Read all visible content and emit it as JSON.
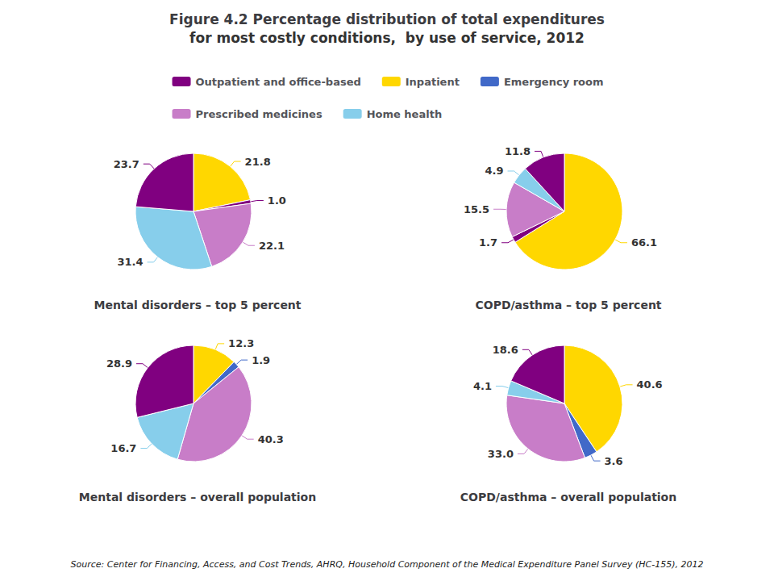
{
  "title": "Figure 4.2 Percentage distribution of total expenditures",
  "subtitle": "for most costly conditions,  by use of service, 2012",
  "annotations": [
    "Source: Center for Financing, Access, and Cost Trends, AHRQ, Household Component of the Medical Expenditure Panel Survey (HC-155), 2012"
  ],
  "legend": "top",
  "categories": [
    "Outpatient and office-based",
    "Inpatient",
    "Emergency room",
    "Prescribed medicines",
    "Home health"
  ],
  "chart_data": [
    {
      "type": "pie",
      "title": "Mental disorders – top 5 percent",
      "categories": [
        "Inpatient",
        "Outpatient and office-based",
        "Prescribed medicines",
        "Home health",
        "Outpatient and office-based"
      ],
      "values": [
        21.8,
        1.0,
        22.1,
        31.4,
        23.7
      ],
      "value_labels": [
        "21.8",
        "1.0",
        "22.1",
        "31.4",
        "23.7"
      ],
      "colors": [
        "#ffd700",
        "#800080",
        "#c87dc8",
        "#87ceeb",
        "#800080"
      ],
      "data_labels": true
    },
    {
      "type": "pie",
      "title": "COPD/asthma – top 5 percent",
      "categories": [
        "Inpatient",
        "Outpatient and office-based",
        "Prescribed medicines",
        "Home health",
        "Outpatient and office-based"
      ],
      "values": [
        66.1,
        1.7,
        15.5,
        4.9,
        11.8
      ],
      "value_labels": [
        "66.1",
        "1.7",
        "15.5",
        "4.9",
        "11.8"
      ],
      "colors": [
        "#ffd700",
        "#800080",
        "#c87dc8",
        "#87ceeb",
        "#800080"
      ],
      "data_labels": true
    },
    {
      "type": "pie",
      "title": "Mental disorders – overall population",
      "categories": [
        "Inpatient",
        "Emergency room",
        "Prescribed medicines",
        "Home health",
        "Outpatient and office-based"
      ],
      "values": [
        12.3,
        1.9,
        40.3,
        16.7,
        28.9
      ],
      "value_labels": [
        "12.3",
        "1.9",
        "40.3",
        "16.7",
        "28.9"
      ],
      "colors": [
        "#ffd700",
        "#4169c8",
        "#c87dc8",
        "#87ceeb",
        "#800080"
      ],
      "data_labels": true
    },
    {
      "type": "pie",
      "title": "COPD/asthma – overall population",
      "categories": [
        "Inpatient",
        "Emergency room",
        "Prescribed medicines",
        "Home health",
        "Outpatient and office-based"
      ],
      "values": [
        40.6,
        3.6,
        33.0,
        4.1,
        18.6
      ],
      "value_labels": [
        "40.6",
        "3.6",
        "33.0",
        "4.1",
        "18.6"
      ],
      "colors": [
        "#ffd700",
        "#4169c8",
        "#c87dc8",
        "#87ceeb",
        "#800080"
      ],
      "data_labels": true
    }
  ]
}
